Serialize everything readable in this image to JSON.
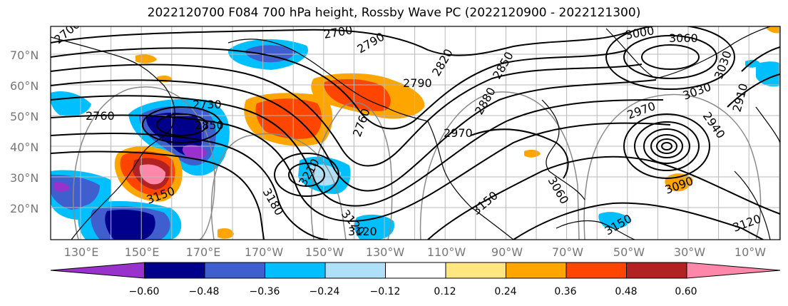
{
  "title": "2022120700 F084 700 hPa height, Rossby Wave PC (2022120900 - 2022121300)",
  "lat_labels": [
    "70°N",
    "60°N",
    "50°N",
    "40°N",
    "30°N",
    "20°N"
  ],
  "lon_labels": [
    "130°E",
    "150°E",
    "170°E",
    "170°W",
    "150°W",
    "130°W",
    "110°W",
    "90°W",
    "70°W",
    "50°W",
    "30°W",
    "10°W"
  ],
  "colorbar": {
    "ticks": [
      "−0.60",
      "−0.48",
      "−0.36",
      "−0.24",
      "−0.12",
      "0.12",
      "0.24",
      "0.36",
      "0.48",
      "0.60"
    ],
    "colors": [
      "#9932cc",
      "#00008b",
      "#3f5fcf",
      "#00bfff",
      "#b0e0f8",
      "#ffffff",
      "#ffe680",
      "#ffa500",
      "#ff4500",
      "#b22222",
      "#ff88aa"
    ]
  },
  "contour_labels": [
    {
      "text": "2700"
    },
    {
      "text": "2700"
    },
    {
      "text": "2760"
    },
    {
      "text": "2790"
    },
    {
      "text": "2790"
    },
    {
      "text": "2820"
    },
    {
      "text": "2850"
    },
    {
      "text": "2880"
    },
    {
      "text": "3000"
    },
    {
      "text": "3060"
    },
    {
      "text": "3030"
    },
    {
      "text": "3030"
    },
    {
      "text": "2970"
    },
    {
      "text": "2940"
    },
    {
      "text": "2910"
    },
    {
      "text": "2730"
    },
    {
      "text": "2850"
    },
    {
      "text": "2760"
    },
    {
      "text": "2970"
    },
    {
      "text": "3060"
    },
    {
      "text": "3210"
    },
    {
      "text": "3180"
    },
    {
      "text": "3150"
    },
    {
      "text": "3120"
    },
    {
      "text": "3120"
    },
    {
      "text": "3150"
    },
    {
      "text": "3090"
    },
    {
      "text": "3150"
    },
    {
      "text": "3120"
    }
  ]
}
